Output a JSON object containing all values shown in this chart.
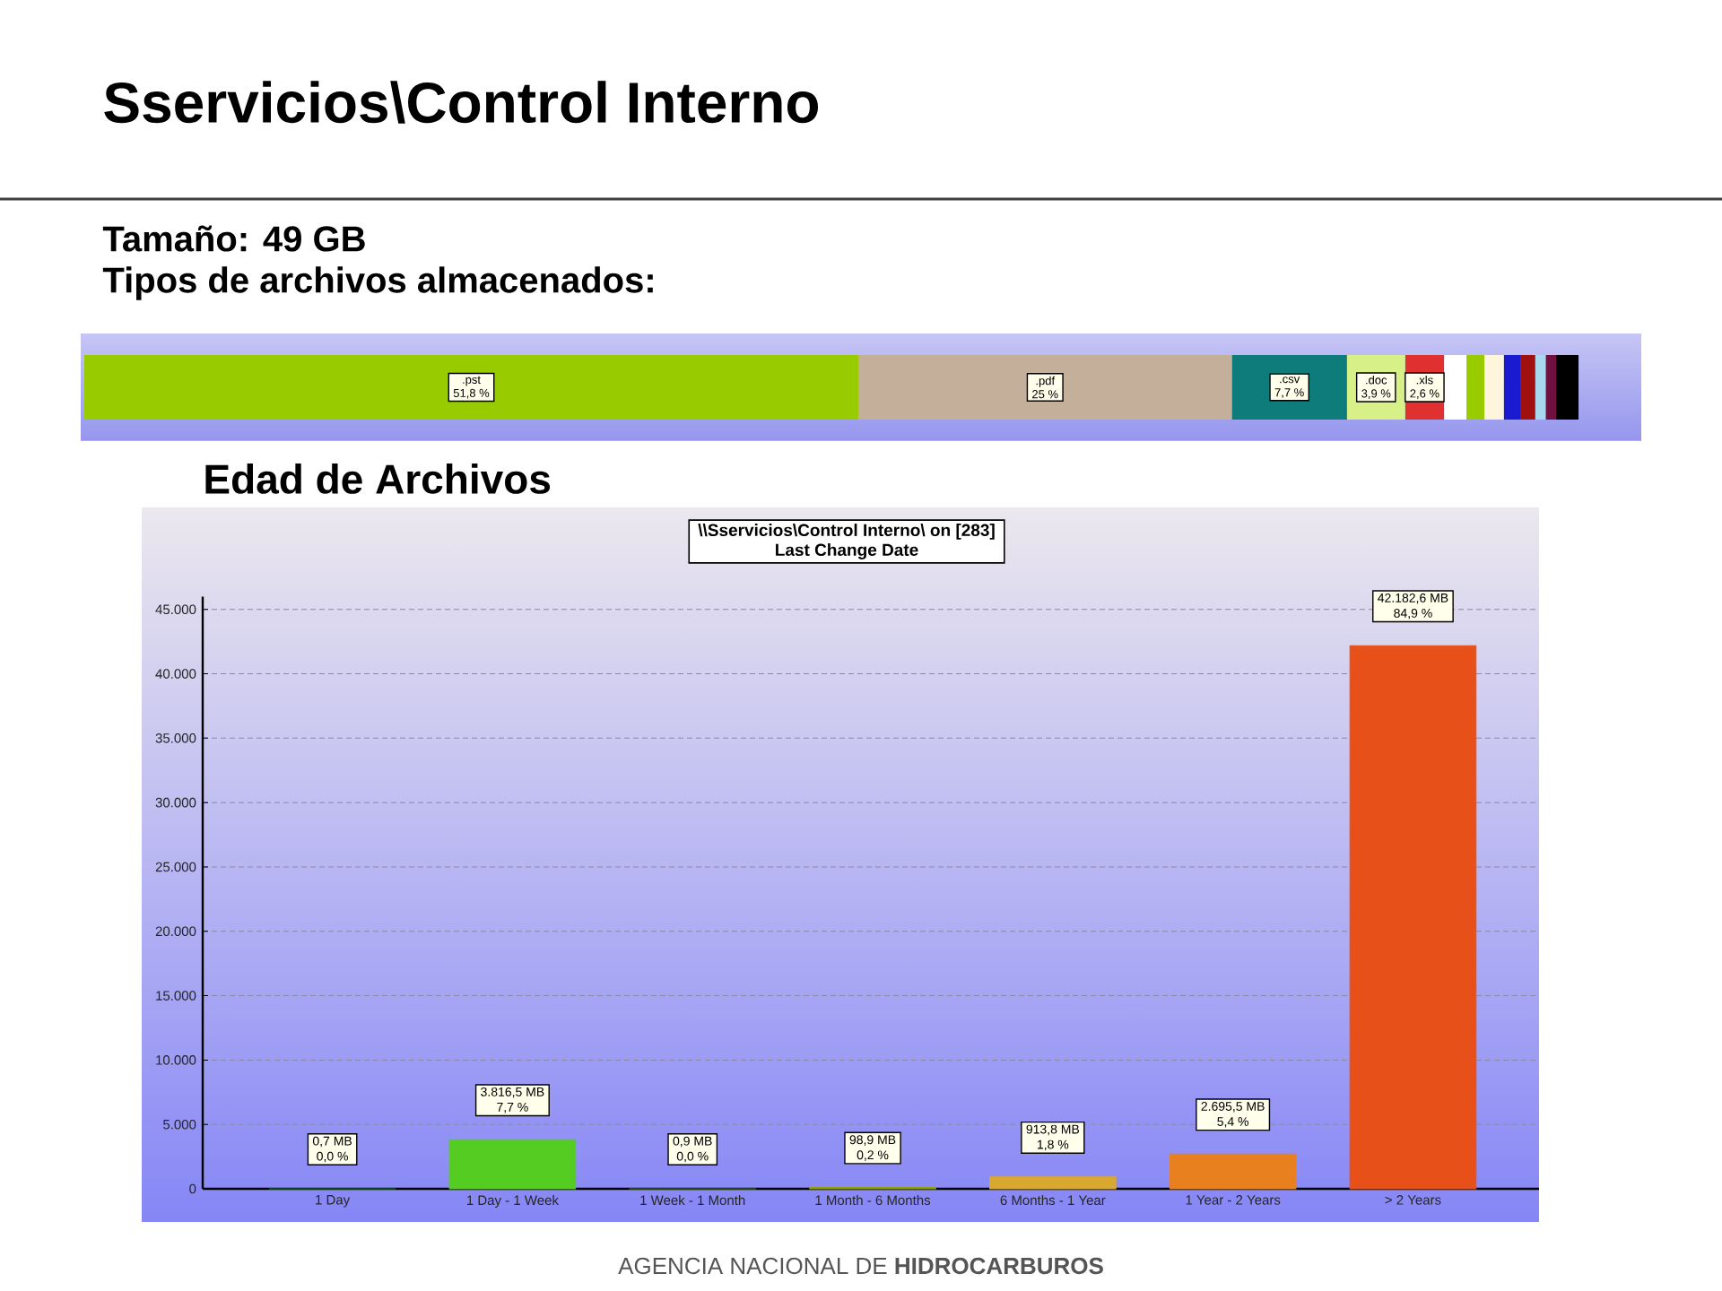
{
  "chart_data": [
    {
      "type": "bar",
      "title": "Sservicios\\Control Interno",
      "annotations": [
        "Tamaño: 49 GB",
        "Tipos de archivos almacenados:"
      ],
      "categories": [
        null
      ],
      "orientation": "horizontal",
      "stacked": true,
      "series": [
        {
          "name": ".pst",
          "color": "#99cc00",
          "values": [
            51.8
          ],
          "value_labels": [
            "51,8 %"
          ]
        },
        {
          "name": ".pdf",
          "color": "#c4af9b",
          "values": [
            25
          ],
          "value_labels": [
            "25 %"
          ]
        },
        {
          "name": ".csv",
          "color": "#0e7c7b",
          "values": [
            7.7
          ],
          "value_labels": [
            "7,7 %"
          ]
        },
        {
          "name": ".doc",
          "color": "#d8f088",
          "values": [
            3.9
          ],
          "value_labels": [
            "3,9 %"
          ]
        },
        {
          "name": ".xls",
          "color": "#e03030",
          "values": [
            2.6
          ],
          "value_labels": [
            "2,6 %"
          ]
        },
        {
          "color": "#ffffff",
          "values": [
            1.5
          ]
        },
        {
          "color": "#99cc00",
          "values": [
            1.2
          ]
        },
        {
          "color": "#fff5dc",
          "values": [
            1.3
          ]
        },
        {
          "color": "#1a1ad0",
          "values": [
            1.1
          ]
        },
        {
          "color": "#a01010",
          "values": [
            1.0
          ]
        },
        {
          "color": "#a8d8f0",
          "values": [
            0.7
          ]
        },
        {
          "color": "#701040",
          "values": [
            0.7
          ]
        },
        {
          "color": "#000000",
          "values": [
            1.5
          ]
        }
      ]
    },
    {
      "type": "bar",
      "title": "\\\\Sservicios\\Control Interno\\ on [283]",
      "subtitle": "Last Change Date",
      "annotations": [
        "Edad de Archivos",
        "AGENCIA NACIONAL DE **HIDROCARBUROS**"
      ],
      "categories": [
        "1 Day",
        "1 Day - 1 Week",
        "1 Week - 1 Month",
        "1 Month - 6 Months",
        "6 Months - 1 Year",
        "1 Year - 2 Years",
        "> 2 Years"
      ],
      "values": [
        0.7,
        3816.5,
        0.9,
        98.9,
        913.8,
        2695.5,
        42182.6
      ],
      "colors": [
        "#1a8c1a",
        "#55cc22",
        "#4a8c10",
        "#8ca010",
        "#d8a830",
        "#e88020",
        "#e8501a"
      ],
      "value_labels": [
        "0,7 MB\n0,0 %",
        "3.816,5 MB\n7,7 %",
        "0,9 MB\n0,0 %",
        "98,9 MB\n0,2 %",
        "913,8 MB\n1,8 %",
        "2.695,5 MB\n5,4 %",
        "42.182,6 MB\n84,9 %"
      ],
      "ylim": [
        0,
        46000
      ],
      "yticks": [
        0,
        {
          "value": 5000,
          "label": "5.000"
        },
        {
          "value": 10000,
          "label": "10.000"
        },
        {
          "value": 15000,
          "label": "15.000"
        },
        {
          "value": 20000,
          "label": "20.000"
        },
        {
          "value": 25000,
          "label": "25.000"
        },
        {
          "value": 30000,
          "label": "30.000"
        },
        {
          "value": 35000,
          "label": "35.000"
        },
        {
          "value": 40000,
          "label": "40.000"
        },
        {
          "value": 45000,
          "label": "45.000"
        }
      ],
      "grid": "y"
    }
  ]
}
